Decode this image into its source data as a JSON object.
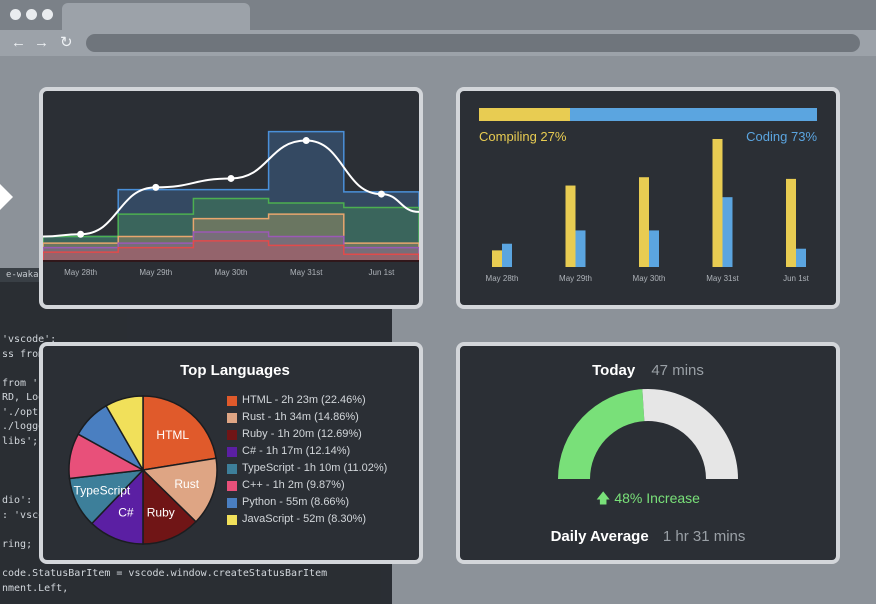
{
  "browser": {
    "icons": [
      "back-arrow-icon",
      "forward-arrow-icon",
      "reload-icon"
    ]
  },
  "code_background": {
    "tab_label": "e-wakatim",
    "lines": [
      "'vscode';",
      "ss from '",
      "from './",
      "RD, Log",
      "'./opti",
      "./logge",
      "libs';",
      "dio': '",
      ": 'vsco",
      "ring;",
      "code.StatusBarItem = vscode.window.createStatusBarItem",
      "nment.Left,"
    ]
  },
  "activity_chart": {
    "chart_data": {
      "type": "area",
      "categories": [
        "May 28th",
        "May 29th",
        "May 30th",
        "May 31st",
        "Jun 1st"
      ],
      "series": [
        {
          "color": "#4a90d9",
          "values": [
            1.1,
            3.2,
            3.2,
            5.8,
            3.1
          ]
        },
        {
          "color": "#4caf50",
          "values": [
            1.1,
            2.1,
            2.8,
            2.6,
            2.4
          ]
        },
        {
          "color": "#e8a66e",
          "values": [
            0.8,
            1.1,
            1.9,
            2.1,
            0.8
          ]
        },
        {
          "color": "#9b59b6",
          "values": [
            0.6,
            0.8,
            1.3,
            1.1,
            0.6
          ]
        },
        {
          "color": "#e14b4b",
          "values": [
            0.4,
            0.6,
            0.9,
            0.7,
            0.3
          ]
        }
      ],
      "trend_points": [
        1.2,
        3.3,
        3.7,
        5.4,
        3.0
      ],
      "ylim": [
        0,
        6.5
      ]
    }
  },
  "compile_chart": {
    "compiling_label": "Compiling 27%",
    "coding_label": "Coding 73%",
    "compiling_fraction": 0.27,
    "coding_fraction": 0.73,
    "colors": {
      "compiling": "#e8cc52",
      "coding": "#5ba5e0"
    },
    "chart_data": {
      "type": "bar",
      "categories": [
        "May 28th",
        "May 29th",
        "May 30th",
        "May 31st",
        "Jun 1st"
      ],
      "series": [
        {
          "name": "Compiling",
          "values": [
            1.0,
            4.9,
            5.4,
            7.7,
            5.3
          ]
        },
        {
          "name": "Coding",
          "values": [
            1.4,
            2.2,
            2.2,
            4.2,
            1.1
          ]
        }
      ],
      "ylim": [
        0,
        8
      ]
    }
  },
  "languages": {
    "title": "Top Languages",
    "chart_data": {
      "type": "pie",
      "slices": [
        {
          "label": "HTML",
          "legend": "HTML - 2h 23m (22.46%)",
          "value": 22.46,
          "color": "#e05a2b"
        },
        {
          "label": "Rust",
          "legend": "Rust - 1h 34m (14.86%)",
          "value": 14.86,
          "color": "#dea584"
        },
        {
          "label": "Ruby",
          "legend": "Ruby - 1h 20m (12.69%)",
          "value": 12.69,
          "color": "#701516"
        },
        {
          "label": "C#",
          "legend": "C# - 1h 17m (12.14%)",
          "value": 12.14,
          "color": "#5b1fa3"
        },
        {
          "label": "TypeScript",
          "legend": "TypeScript - 1h 10m (11.02%)",
          "value": 11.02,
          "color": "#3d7f9a"
        },
        {
          "label": "",
          "legend": "C++ - 1h 2m (9.87%)",
          "value": 9.87,
          "color": "#e8507a"
        },
        {
          "label": "",
          "legend": "Python - 55m (8.66%)",
          "value": 8.66,
          "color": "#4a7fc1"
        },
        {
          "label": "",
          "legend": "JavaScript - 52m (8.30%)",
          "value": 8.3,
          "color": "#f1e05a"
        }
      ]
    }
  },
  "today": {
    "label": "Today",
    "value": "47 mins",
    "increase_text": "48% Increase",
    "gauge_fraction": 0.48,
    "colors": {
      "fill": "#79e079",
      "rest": "#e6e6e6"
    },
    "average_label": "Daily Average",
    "average_value": "1 hr 31 mins"
  }
}
